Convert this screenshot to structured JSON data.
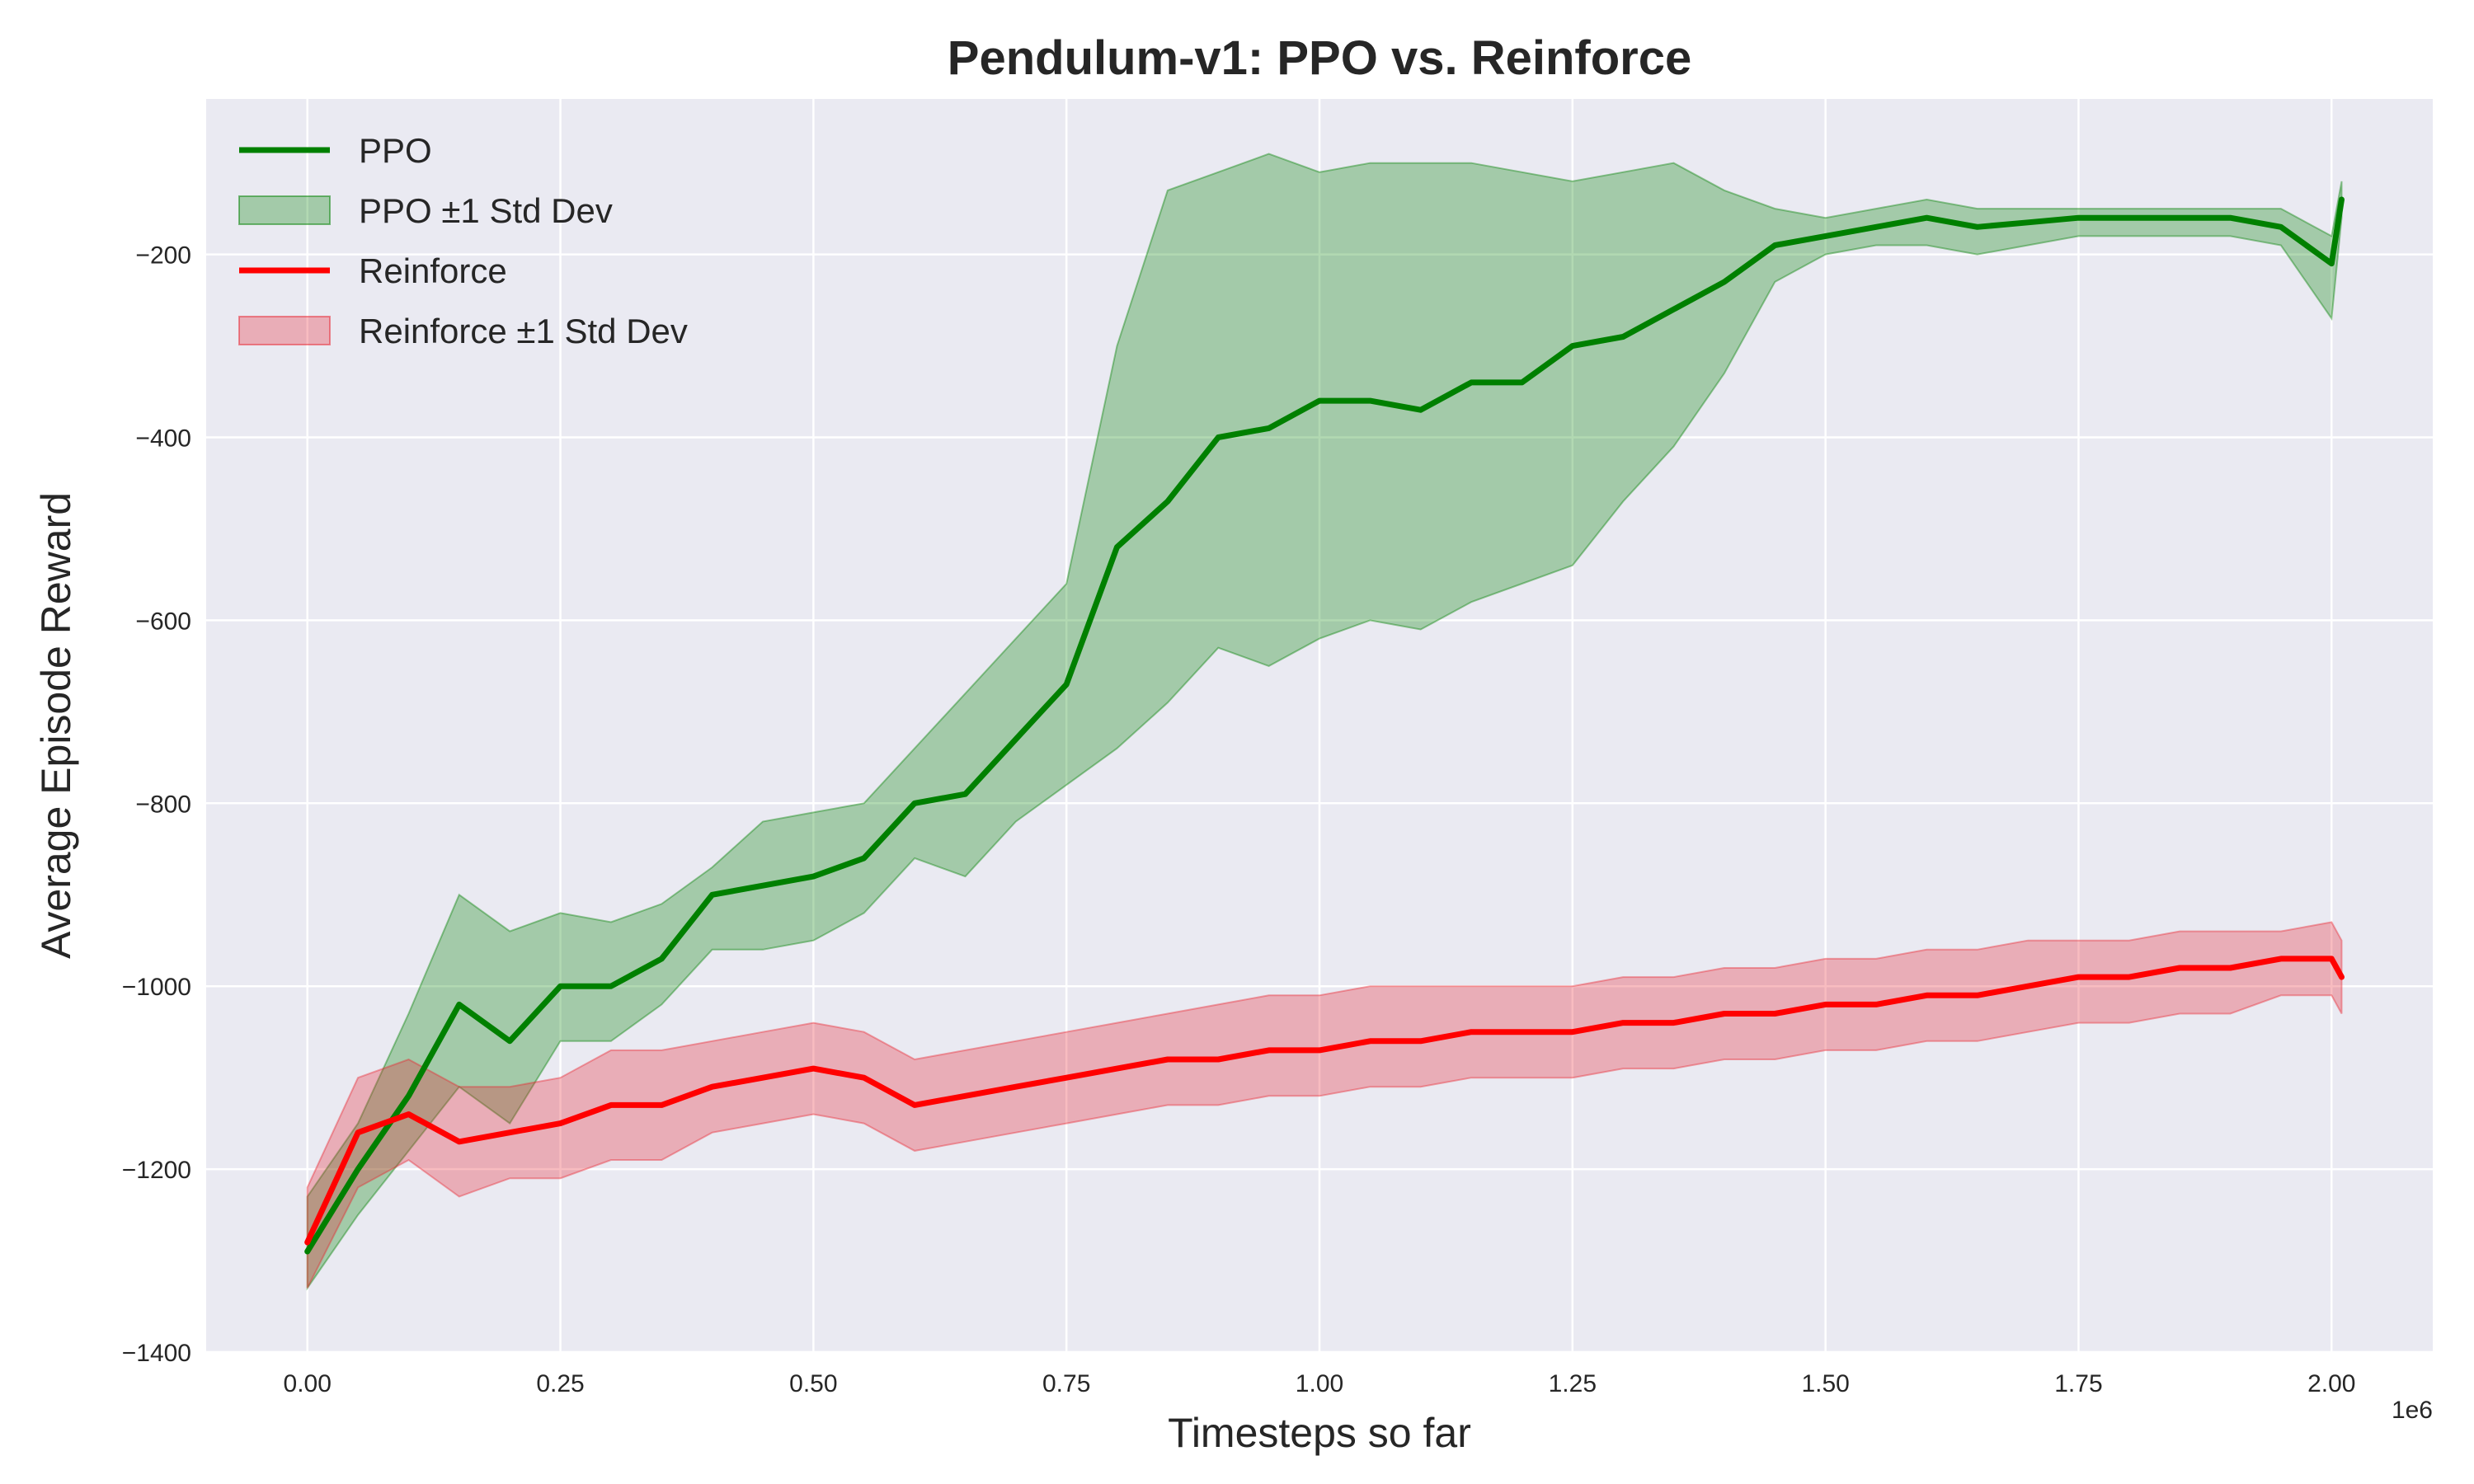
{
  "chart_data": {
    "type": "line",
    "title": "Pendulum-v1: PPO vs. Reinforce",
    "xlabel": "Timesteps so far",
    "ylabel": "Average Episode Reward",
    "x_scale_label": "1e6",
    "xlim": [
      -0.1,
      2.1
    ],
    "ylim": [
      -1400,
      -30
    ],
    "x_ticks": [
      0.0,
      0.25,
      0.5,
      0.75,
      1.0,
      1.25,
      1.5,
      1.75,
      2.0
    ],
    "x_tick_labels": [
      "0.00",
      "0.25",
      "0.50",
      "0.75",
      "1.00",
      "1.25",
      "1.50",
      "1.75",
      "2.00"
    ],
    "y_ticks": [
      -1400,
      -1200,
      -1000,
      -800,
      -600,
      -400,
      -200
    ],
    "y_tick_labels": [
      "−1400",
      "−1200",
      "−1000",
      "−800",
      "−600",
      "−400",
      "−200"
    ],
    "grid": true,
    "legend_position": "top-left",
    "legend": [
      "PPO",
      "PPO ±1 Std Dev",
      "Reinforce",
      "Reinforce ±1 Std Dev"
    ],
    "x": [
      0.0,
      0.05,
      0.1,
      0.15,
      0.2,
      0.25,
      0.3,
      0.35,
      0.4,
      0.45,
      0.5,
      0.55,
      0.6,
      0.65,
      0.7,
      0.75,
      0.8,
      0.85,
      0.9,
      0.95,
      1.0,
      1.05,
      1.1,
      1.15,
      1.2,
      1.25,
      1.3,
      1.35,
      1.4,
      1.45,
      1.5,
      1.55,
      1.6,
      1.65,
      1.7,
      1.75,
      1.8,
      1.85,
      1.9,
      1.95,
      2.0,
      2.01
    ],
    "series": [
      {
        "name": "PPO",
        "color": "#008000",
        "band_color": "#008000",
        "mean": [
          -1290,
          -1200,
          -1120,
          -1020,
          -1060,
          -1000,
          -1000,
          -970,
          -900,
          -890,
          -880,
          -860,
          -800,
          -790,
          -730,
          -670,
          -520,
          -470,
          -400,
          -390,
          -360,
          -360,
          -370,
          -340,
          -340,
          -300,
          -290,
          -260,
          -230,
          -190,
          -180,
          -170,
          -160,
          -170,
          -165,
          -160,
          -160,
          -160,
          -160,
          -170,
          -210,
          -140
        ],
        "upper": [
          -1230,
          -1150,
          -1030,
          -900,
          -940,
          -920,
          -930,
          -910,
          -870,
          -820,
          -810,
          -800,
          -740,
          -680,
          -620,
          -560,
          -300,
          -130,
          -110,
          -90,
          -110,
          -100,
          -100,
          -100,
          -110,
          -120,
          -110,
          -100,
          -130,
          -150,
          -160,
          -150,
          -140,
          -150,
          -150,
          -150,
          -150,
          -150,
          -150,
          -150,
          -180,
          -120
        ],
        "lower": [
          -1330,
          -1250,
          -1180,
          -1110,
          -1150,
          -1060,
          -1060,
          -1020,
          -960,
          -960,
          -950,
          -920,
          -860,
          -880,
          -820,
          -780,
          -740,
          -690,
          -630,
          -650,
          -620,
          -600,
          -610,
          -580,
          -560,
          -540,
          -470,
          -410,
          -330,
          -230,
          -200,
          -190,
          -190,
          -200,
          -190,
          -180,
          -180,
          -180,
          -180,
          -190,
          -270,
          -160
        ]
      },
      {
        "name": "Reinforce",
        "color": "#ff0000",
        "band_color": "#e8222e",
        "mean": [
          -1280,
          -1160,
          -1140,
          -1170,
          -1160,
          -1150,
          -1130,
          -1130,
          -1110,
          -1100,
          -1090,
          -1100,
          -1130,
          -1120,
          -1110,
          -1100,
          -1090,
          -1080,
          -1080,
          -1070,
          -1070,
          -1060,
          -1060,
          -1050,
          -1050,
          -1050,
          -1040,
          -1040,
          -1030,
          -1030,
          -1020,
          -1020,
          -1010,
          -1010,
          -1000,
          -990,
          -990,
          -980,
          -980,
          -970,
          -970,
          -990
        ],
        "upper": [
          -1220,
          -1100,
          -1080,
          -1110,
          -1110,
          -1100,
          -1070,
          -1070,
          -1060,
          -1050,
          -1040,
          -1050,
          -1080,
          -1070,
          -1060,
          -1050,
          -1040,
          -1030,
          -1020,
          -1010,
          -1010,
          -1000,
          -1000,
          -1000,
          -1000,
          -1000,
          -990,
          -990,
          -980,
          -980,
          -970,
          -970,
          -960,
          -960,
          -950,
          -950,
          -950,
          -940,
          -940,
          -940,
          -930,
          -950
        ],
        "lower": [
          -1330,
          -1220,
          -1190,
          -1230,
          -1210,
          -1210,
          -1190,
          -1190,
          -1160,
          -1150,
          -1140,
          -1150,
          -1180,
          -1170,
          -1160,
          -1150,
          -1140,
          -1130,
          -1130,
          -1120,
          -1120,
          -1110,
          -1110,
          -1100,
          -1100,
          -1100,
          -1090,
          -1090,
          -1080,
          -1080,
          -1070,
          -1070,
          -1060,
          -1060,
          -1050,
          -1040,
          -1040,
          -1030,
          -1030,
          -1010,
          -1010,
          -1030
        ]
      }
    ]
  }
}
